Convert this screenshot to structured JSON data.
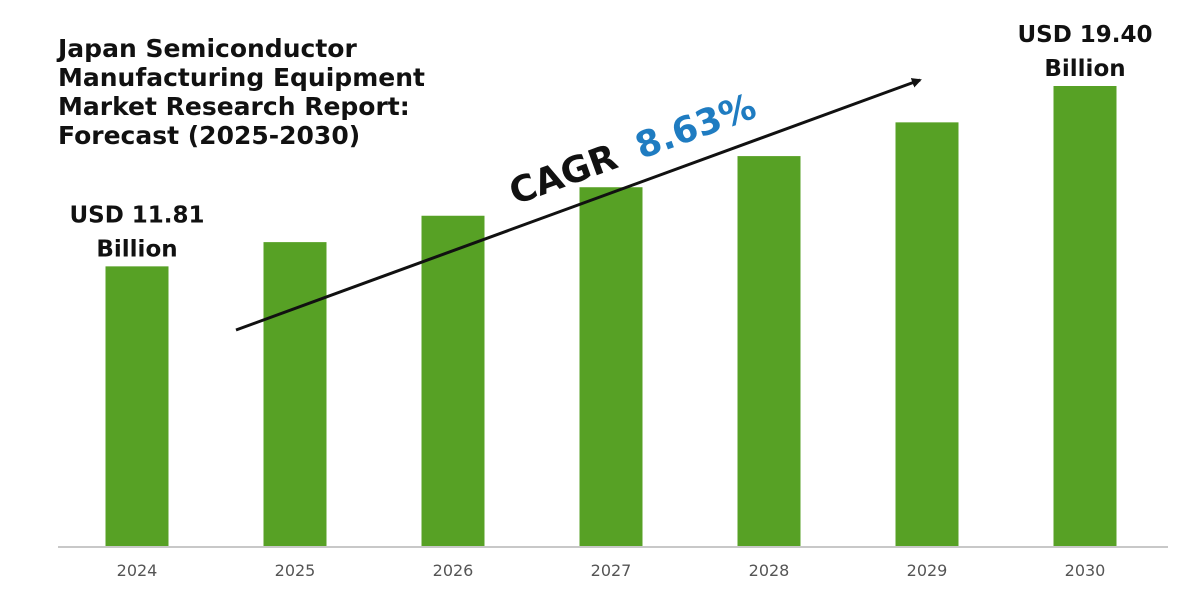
{
  "title_lines": [
    "Japan Semiconductor",
    "Manufacturing Equipment",
    "Market Research Report:",
    "Forecast (2025-2030)"
  ],
  "cagr": {
    "label": "CAGR",
    "value": "8.63%",
    "label_color": "#111111",
    "value_color": "#1f7cc1"
  },
  "colors": {
    "bar": "#57a125",
    "axis": "#c8c8c8",
    "arrow": "#111111"
  },
  "chart_data": {
    "type": "bar",
    "categories": [
      "2024",
      "2025",
      "2026",
      "2027",
      "2028",
      "2029",
      "2030"
    ],
    "values": [
      11.81,
      12.83,
      13.94,
      15.14,
      16.45,
      17.87,
      19.4
    ],
    "title": "Japan Semiconductor Manufacturing Equipment Market Research Report: Forecast (2025-2030)",
    "xlabel": "",
    "ylabel": "",
    "grid": false,
    "annotations": [
      {
        "category": "2024",
        "lines": [
          "USD 11.81",
          "Billion"
        ]
      },
      {
        "category": "2030",
        "lines": [
          "USD 19.40",
          "Billion"
        ]
      }
    ]
  }
}
